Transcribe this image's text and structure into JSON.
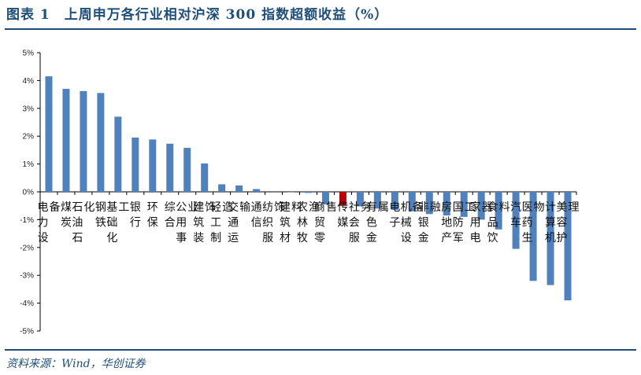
{
  "title": "图表 1　上周申万各行业相对沪深 300 指数超额收益（%）",
  "source": "资料来源：Wind，华创证券",
  "colors": {
    "bar": "#4F81BD",
    "highlight": "#C00000",
    "rule": "#1F4E79",
    "axis": "#000000"
  },
  "chart_data": {
    "type": "bar",
    "title": "上周申万各行业相对沪深 300 指数超额收益（%）",
    "xlabel": "",
    "ylabel": "",
    "ylim": [
      -5,
      5
    ],
    "yticks": [
      "5%",
      "4%",
      "3%",
      "2%",
      "1%",
      "0%",
      "-1%",
      "-2%",
      "-3%",
      "-4%",
      "-5%"
    ],
    "grid": false,
    "highlight_category": "传媒",
    "categories": [
      "电力设备",
      "煤炭",
      "石油石化",
      "钢铁",
      "基础化工",
      "银行",
      "环保",
      "综合",
      "公用事业",
      "建筑装饰",
      "轻工制造",
      "交通运输",
      "通信",
      "纺织服饰",
      "建筑材料",
      "农林牧渔",
      "商贸零售",
      "传媒",
      "社会服务",
      "有色金属",
      "电子",
      "机械设备",
      "非银金融",
      "房地产",
      "国防军工",
      "家用电器",
      "食品饮料",
      "汽车",
      "医药生物",
      "计算机",
      "美容护理"
    ],
    "values": [
      4.15,
      3.7,
      3.62,
      3.55,
      2.7,
      1.95,
      1.88,
      1.73,
      1.58,
      1.02,
      0.27,
      0.23,
      0.1,
      0.0,
      -0.02,
      -0.04,
      -0.45,
      -0.5,
      -0.52,
      -0.6,
      -0.65,
      -0.7,
      -0.8,
      -0.85,
      -0.9,
      -1.0,
      -1.35,
      -2.05,
      -3.2,
      -3.35,
      -3.9
    ]
  }
}
